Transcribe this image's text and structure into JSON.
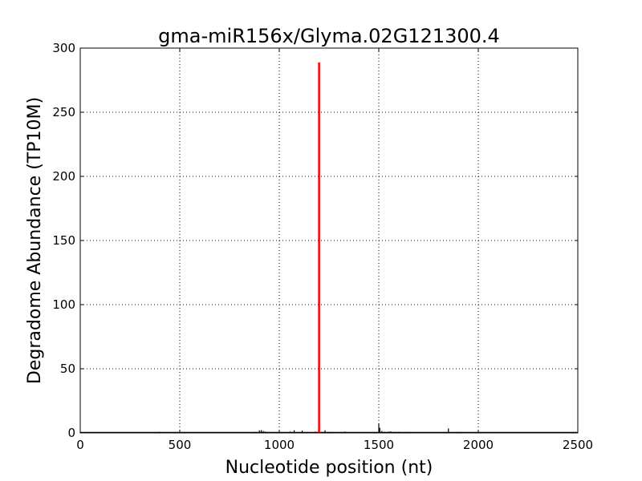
{
  "chart_data": {
    "type": "line",
    "title": "gma-miR156x/Glyma.02G121300.4",
    "xlabel": "Nucleotide position (nt)",
    "ylabel": "Degradome Abundance (TP10M)",
    "xlim": [
      0,
      2500
    ],
    "ylim": [
      0,
      300
    ],
    "xticks": [
      0,
      500,
      1000,
      1500,
      2000,
      2500
    ],
    "yticks": [
      0,
      50,
      100,
      150,
      200,
      250,
      300
    ],
    "grid": true,
    "background_color": "#000000",
    "highlight_color": "#ff0000",
    "background_peaks": [
      [
        330,
        0.5
      ],
      [
        370,
        0.5
      ],
      [
        400,
        0.8
      ],
      [
        630,
        0.5
      ],
      [
        690,
        0.6
      ],
      [
        700,
        0.7
      ],
      [
        880,
        0.8
      ],
      [
        900,
        2
      ],
      [
        910,
        2.2
      ],
      [
        920,
        1.5
      ],
      [
        930,
        1
      ],
      [
        940,
        0.6
      ],
      [
        1000,
        0.4
      ],
      [
        1055,
        1
      ],
      [
        1075,
        2
      ],
      [
        1115,
        1.8
      ],
      [
        1180,
        1
      ],
      [
        1215,
        0.8
      ],
      [
        1230,
        2
      ],
      [
        1250,
        0.8
      ],
      [
        1270,
        0.6
      ],
      [
        1290,
        0.6
      ],
      [
        1310,
        0.5
      ],
      [
        1330,
        1
      ],
      [
        1345,
        0.6
      ],
      [
        1400,
        0.4
      ],
      [
        1450,
        0.5
      ],
      [
        1490,
        0.6
      ],
      [
        1500,
        7.5
      ],
      [
        1505,
        4
      ],
      [
        1515,
        1.5
      ],
      [
        1530,
        0.8
      ],
      [
        1550,
        1
      ],
      [
        1560,
        1.2
      ],
      [
        1580,
        0.8
      ],
      [
        1600,
        0.8
      ],
      [
        1620,
        0.6
      ],
      [
        1650,
        0.8
      ],
      [
        1700,
        0.5
      ],
      [
        1750,
        0.4
      ],
      [
        1850,
        3.5
      ],
      [
        1880,
        0.5
      ],
      [
        1910,
        0.8
      ],
      [
        1950,
        0.4
      ],
      [
        2130,
        0.4
      ]
    ],
    "highlight_peak": [
      1200,
      288.8
    ]
  }
}
